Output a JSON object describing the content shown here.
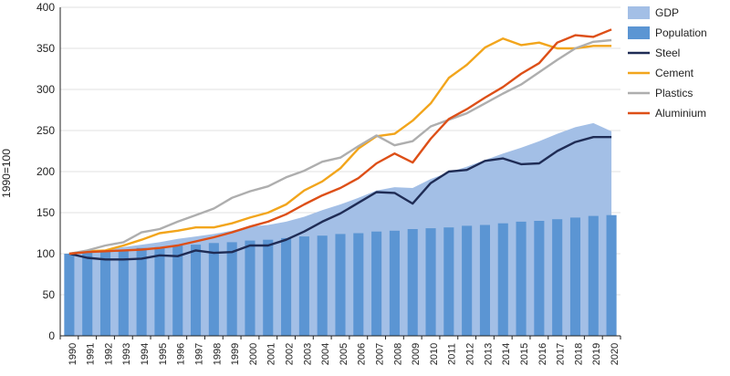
{
  "chart_data": {
    "type": "bar",
    "ylabel": "1990=100",
    "ylim": [
      0,
      400
    ],
    "yticks": [
      "0",
      "50",
      "100",
      "150",
      "200",
      "250",
      "300",
      "350",
      "400"
    ],
    "grid": "horizontal",
    "legend_position": "top-right",
    "categories": [
      "1990",
      "1991",
      "1992",
      "1993",
      "1994",
      "1995",
      "1996",
      "1997",
      "1998",
      "1999",
      "2000",
      "2001",
      "2002",
      "2003",
      "2004",
      "2005",
      "2006",
      "2007",
      "2008",
      "2009",
      "2010",
      "2011",
      "2012",
      "2013",
      "2014",
      "2015",
      "2016",
      "2017",
      "2018",
      "2019",
      "2020"
    ],
    "series": [
      {
        "name": "GDP",
        "kind": "area",
        "color": "#a3bfe6",
        "values": [
          100,
          103,
          105,
          108,
          111,
          114,
          118,
          121,
          124,
          128,
          133,
          135,
          139,
          145,
          153,
          160,
          168,
          177,
          181,
          180,
          191,
          199,
          206,
          214,
          222,
          229,
          237,
          246,
          254,
          259,
          249
        ]
      },
      {
        "name": "Population",
        "kind": "bar",
        "color": "#5b95d3",
        "values": [
          100,
          102,
          103,
          105,
          107,
          108,
          110,
          111,
          113,
          114,
          116,
          117,
          119,
          121,
          122,
          124,
          125,
          127,
          128,
          130,
          131,
          132,
          134,
          135,
          137,
          139,
          140,
          142,
          144,
          146,
          147
        ]
      },
      {
        "name": "Steel",
        "kind": "line",
        "color": "#1f2c55",
        "values": [
          100,
          95,
          93,
          93,
          94,
          98,
          97,
          104,
          101,
          102,
          110,
          110,
          117,
          127,
          139,
          149,
          162,
          175,
          174,
          161,
          186,
          200,
          202,
          213,
          216,
          209,
          210,
          225,
          236,
          242,
          242
        ]
      },
      {
        "name": "Cement",
        "kind": "line",
        "color": "#f2a51c",
        "values": [
          100,
          103,
          104,
          110,
          117,
          125,
          128,
          132,
          132,
          137,
          144,
          150,
          160,
          177,
          188,
          204,
          228,
          243,
          246,
          262,
          283,
          314,
          330,
          351,
          362,
          354,
          357,
          350,
          350,
          353,
          353
        ]
      },
      {
        "name": "Plastics",
        "kind": "line",
        "color": "#aeaeae",
        "values": [
          100,
          104,
          110,
          114,
          126,
          130,
          139,
          147,
          155,
          168,
          176,
          182,
          193,
          201,
          212,
          217,
          231,
          244,
          232,
          237,
          255,
          263,
          271,
          283,
          295,
          306,
          321,
          336,
          350,
          358,
          360
        ]
      },
      {
        "name": "Aluminium",
        "kind": "line",
        "color": "#dd4f17",
        "values": [
          100,
          102,
          103,
          104,
          105,
          107,
          110,
          115,
          120,
          126,
          133,
          139,
          148,
          160,
          171,
          180,
          192,
          210,
          222,
          211,
          240,
          264,
          276,
          290,
          303,
          319,
          332,
          357,
          366,
          364,
          373
        ]
      }
    ]
  }
}
